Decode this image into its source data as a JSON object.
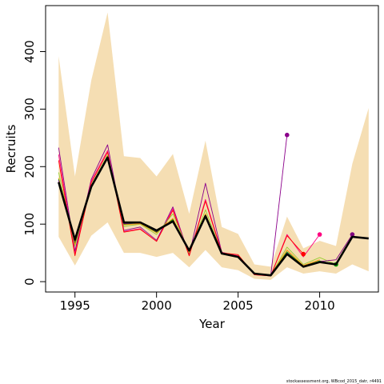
{
  "chart_data": {
    "type": "line",
    "xlabel": "Year",
    "ylabel": "Recruits",
    "xlim": [
      1993.2,
      2013.6
    ],
    "ylim": [
      -18,
      480
    ],
    "x_ticks": [
      1995,
      2000,
      2005,
      2010
    ],
    "y_ticks": [
      0,
      100,
      200,
      300,
      400
    ],
    "interval_band": {
      "color": "#F5DEB3",
      "x": [
        1994,
        1995,
        1996,
        1997,
        1998,
        1999,
        2000,
        2001,
        2002,
        2003,
        2004,
        2005,
        2006,
        2007,
        2008,
        2009,
        2010,
        2011,
        2012,
        2013
      ],
      "upper": [
        392,
        183,
        350,
        468,
        218,
        215,
        183,
        222,
        118,
        245,
        95,
        83,
        30,
        26,
        113,
        58,
        71,
        62,
        205,
        302
      ],
      "lower": [
        78,
        28,
        80,
        103,
        50,
        50,
        43,
        50,
        25,
        55,
        25,
        20,
        5,
        3,
        25,
        14,
        18,
        14,
        30,
        18
      ]
    },
    "series": [
      {
        "color": "#000000",
        "x": [
          1994,
          1995,
          1996,
          1997,
          1998,
          1999,
          2000,
          2001,
          2002,
          2003,
          2004,
          2005,
          2006,
          2007,
          2008,
          2009,
          2010,
          2011,
          2012,
          2013
        ],
        "values": [
          173,
          73,
          165,
          216,
          103,
          103,
          89,
          105,
          54,
          114,
          49,
          43,
          14,
          11,
          48,
          26,
          34,
          30,
          78,
          75
        ]
      },
      {
        "color": "#8B008B",
        "x": [
          1994,
          1995,
          1996,
          1997,
          1998,
          1999,
          2000,
          2001,
          2002,
          2003,
          2004,
          2005,
          2006,
          2007,
          2008
        ],
        "values": [
          233,
          53,
          178,
          238,
          89,
          95,
          72,
          130,
          46,
          171,
          51,
          44,
          14,
          10,
          255
        ],
        "end_marker": true
      },
      {
        "color": "#FF0080",
        "x": [
          1994,
          1995,
          1996,
          1997,
          1998,
          1999,
          2000,
          2001,
          2002,
          2003,
          2004,
          2005,
          2006,
          2007,
          2008,
          2009,
          2010
        ],
        "values": [
          221,
          48,
          175,
          228,
          87,
          92,
          70,
          127,
          45,
          143,
          51,
          45,
          12,
          10,
          82,
          43,
          82
        ],
        "end_marker": true
      },
      {
        "color": "#FF0000",
        "x": [
          1994,
          1995,
          1996,
          1997,
          1998,
          1999,
          2000,
          2001,
          2002,
          2003,
          2004,
          2005,
          2006,
          2007,
          2008,
          2009
        ],
        "values": [
          211,
          45,
          172,
          225,
          86,
          91,
          70,
          124,
          45,
          140,
          50,
          47,
          12,
          10,
          80,
          48
        ],
        "end_marker": true
      },
      {
        "color": "#9ACD32",
        "x": [
          1994,
          1995,
          1996,
          1997,
          1998,
          1999,
          2000,
          2001,
          2002,
          2003,
          2004,
          2005,
          2006,
          2007,
          2008,
          2009,
          2010,
          2011
        ],
        "values": [
          190,
          62,
          168,
          220,
          96,
          100,
          82,
          118,
          50,
          125,
          50,
          44,
          13,
          11,
          60,
          30,
          42,
          30
        ],
        "end_marker": true
      },
      {
        "color": "#FF8C00",
        "x": [
          1994,
          1995,
          1996,
          1997,
          1998,
          1999,
          2000,
          2001,
          2002,
          2003,
          2004,
          2005,
          2006,
          2007,
          2008,
          2009,
          2010
        ],
        "values": [
          180,
          65,
          166,
          218,
          99,
          101,
          85,
          110,
          52,
          118,
          49,
          43,
          13,
          11,
          55,
          28,
          38
        ]
      },
      {
        "color": "#00A000",
        "x": [
          1994,
          1995,
          1996,
          1997,
          1998,
          1999,
          2000,
          2001,
          2002,
          2003,
          2004,
          2005,
          2006,
          2007,
          2008,
          2009,
          2010,
          2011
        ],
        "values": [
          178,
          68,
          165,
          217,
          100,
          102,
          86,
          108,
          53,
          116,
          49,
          43,
          13,
          11,
          52,
          27,
          36,
          30
        ],
        "end_marker": true
      },
      {
        "color": "#800080",
        "x": [
          1994,
          1995,
          1996,
          1997,
          1998,
          1999,
          2000,
          2001,
          2002,
          2003,
          2004,
          2005,
          2006,
          2007,
          2008,
          2009,
          2010,
          2011,
          2012
        ],
        "values": [
          176,
          70,
          165,
          217,
          101,
          102,
          87,
          106,
          53,
          115,
          49,
          43,
          13,
          11,
          50,
          26,
          35,
          38,
          82
        ],
        "end_marker": true
      }
    ]
  },
  "footer_text": "stockassessment.org, WBcod_2015_datr, r4491"
}
